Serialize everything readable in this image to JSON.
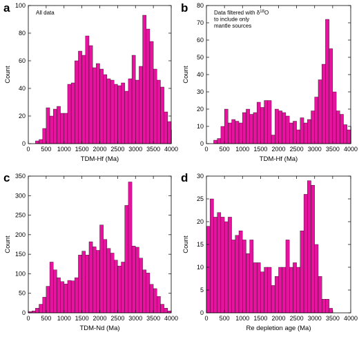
{
  "colors": {
    "bar_fill": "#e6139f",
    "bar_stroke": "#000000",
    "axis": "#000000",
    "background": "#ffffff"
  },
  "chart_data": [
    {
      "id": "a",
      "panel_label": "a",
      "type": "bar",
      "annotation": "All data",
      "annotation_lines": [
        "All data"
      ],
      "xlabel": "TDM-Hf (Ma)",
      "ylabel": "Count",
      "xlim": [
        0,
        4000
      ],
      "ylim": [
        0,
        100
      ],
      "xticks": [
        0,
        500,
        1000,
        1500,
        2000,
        2500,
        3000,
        3500,
        4000
      ],
      "yticks": [
        0,
        20,
        40,
        60,
        80,
        100
      ],
      "bin_width": 100,
      "bin_start": 0,
      "values": [
        0,
        0,
        2,
        3,
        11,
        26,
        20,
        25,
        27,
        22,
        22,
        43,
        44,
        60,
        67,
        64,
        78,
        71,
        55,
        58,
        54,
        50,
        47,
        46,
        43,
        42,
        44,
        38,
        47,
        64,
        46,
        56,
        93,
        83,
        74,
        54,
        46,
        41,
        23,
        16,
        10
      ],
      "grid": false
    },
    {
      "id": "b",
      "panel_label": "b",
      "type": "bar",
      "annotation": "Data filtered with δ18O to include only mantle sources",
      "annotation_lines": [
        "Data filtered with δ18O",
        "to include only",
        "mantle sources"
      ],
      "xlabel": "TDM-Hf (Ma)",
      "ylabel": "Count",
      "xlim": [
        0,
        4000
      ],
      "ylim": [
        0,
        80
      ],
      "xticks": [
        0,
        500,
        1000,
        1500,
        2000,
        2500,
        3000,
        3500,
        4000
      ],
      "yticks": [
        0,
        10,
        20,
        30,
        40,
        50,
        60,
        70,
        80
      ],
      "bin_width": 100,
      "bin_start": 0,
      "values": [
        0,
        0,
        2,
        3,
        10,
        20,
        12,
        14,
        13,
        12,
        18,
        20,
        17,
        18,
        24,
        21,
        25,
        25,
        5,
        20,
        19,
        18,
        16,
        12,
        13,
        8,
        15,
        12,
        14,
        19,
        27,
        37,
        46,
        72,
        55,
        30,
        19,
        17,
        11,
        8,
        10
      ],
      "grid": false
    },
    {
      "id": "c",
      "panel_label": "c",
      "type": "bar",
      "annotation": "",
      "annotation_lines": [],
      "xlabel": "TDM-Nd (Ma)",
      "ylabel": "Count",
      "xlim": [
        0,
        4000
      ],
      "ylim": [
        0,
        350
      ],
      "xticks": [
        0,
        500,
        1000,
        1500,
        2000,
        2500,
        3000,
        3500,
        4000
      ],
      "yticks": [
        0,
        50,
        100,
        150,
        200,
        250,
        300,
        350
      ],
      "bin_width": 100,
      "bin_start": 0,
      "values": [
        3,
        5,
        12,
        22,
        40,
        68,
        130,
        110,
        90,
        80,
        74,
        83,
        82,
        90,
        148,
        158,
        148,
        182,
        169,
        160,
        225,
        188,
        165,
        153,
        135,
        120,
        130,
        275,
        335,
        171,
        168,
        140,
        110,
        102,
        73,
        62,
        42,
        22,
        12,
        5
      ],
      "grid": false
    },
    {
      "id": "d",
      "panel_label": "d",
      "type": "bar",
      "annotation": "",
      "annotation_lines": [],
      "xlabel": "Re depletion age (Ma)",
      "ylabel": "Count",
      "xlim": [
        0,
        4000
      ],
      "ylim": [
        0,
        30
      ],
      "xticks": [
        0,
        500,
        1000,
        1500,
        2000,
        2500,
        3000,
        3500,
        4000
      ],
      "yticks": [
        0,
        5,
        10,
        15,
        20,
        25,
        30
      ],
      "bin_width": 100,
      "bin_start": 0,
      "values": [
        19,
        25,
        21,
        22,
        21,
        20,
        21,
        16,
        17,
        18,
        16,
        13,
        16,
        11,
        11,
        9,
        10,
        10,
        6,
        8,
        10,
        10,
        16,
        10,
        11,
        10,
        18,
        26,
        29,
        28,
        15,
        8,
        3,
        3,
        1,
        0,
        0,
        0,
        0,
        0
      ],
      "grid": false
    }
  ]
}
